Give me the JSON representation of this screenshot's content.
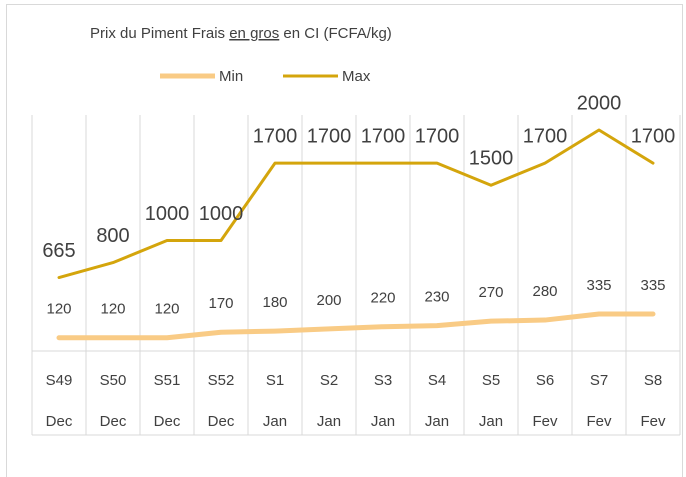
{
  "chart_data": {
    "type": "line",
    "title": [
      "Prix du Piment Frais ",
      "en gros",
      " en CI (FCFA/kg)"
    ],
    "categories": [
      "S49",
      "S50",
      "S51",
      "S52",
      "S1",
      "S2",
      "S3",
      "S4",
      "S5",
      "S6",
      "S7",
      "S8"
    ],
    "months": [
      "Dec",
      "Dec",
      "Dec",
      "Dec",
      "Jan",
      "Jan",
      "Jan",
      "Jan",
      "Jan",
      "Fev",
      "Fev",
      "Fev"
    ],
    "series": [
      {
        "name": "Min",
        "color": "#f9cb85",
        "values": [
          120,
          120,
          120,
          170,
          180,
          200,
          220,
          230,
          270,
          280,
          335,
          335
        ]
      },
      {
        "name": "Max",
        "color": "#d4a50c",
        "values": [
          665,
          800,
          1000,
          1000,
          1700,
          1700,
          1700,
          1700,
          1500,
          1700,
          2000,
          1700
        ]
      }
    ],
    "grid": true,
    "legend": "top"
  }
}
